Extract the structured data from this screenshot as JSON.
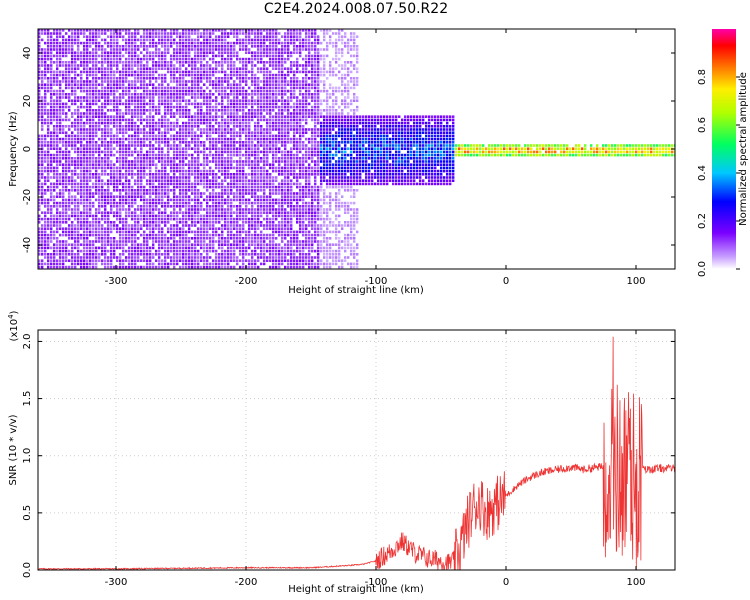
{
  "title": "C2E4.2024.008.07.50.R22",
  "chart_data": [
    {
      "type": "heatmap",
      "xlabel": "Height of straight line (km)",
      "ylabel": "Frequency (Hz)",
      "xlim": [
        -360,
        130
      ],
      "ylim": [
        -50,
        50
      ],
      "xticks": [
        -300,
        -200,
        -100,
        0,
        100
      ],
      "yticks": [
        -40,
        -20,
        0,
        20,
        40
      ],
      "colorbar": {
        "label": "Normalized spectral amplitude",
        "range": [
          0,
          1
        ],
        "ticks": [
          0.0,
          0.2,
          0.4,
          0.6,
          0.8
        ],
        "tick_labels": [
          "0.0",
          "0.2",
          "0.4",
          "0.6",
          "0.8"
        ],
        "colormap": "rainbow (white-purple-blue-cyan-green-yellow-red-magenta)"
      },
      "features": [
        {
          "x_range": [
            -360,
            -145
          ],
          "freq_range": [
            -50,
            50
          ],
          "amplitude": [
            0.02,
            0.15
          ],
          "description_value": "broadband noise"
        },
        {
          "x_range": [
            -145,
            -115
          ],
          "freq_range": [
            -50,
            50
          ],
          "amplitude": [
            0.0,
            0.08
          ]
        },
        {
          "x_range": [
            -145,
            -40
          ],
          "freq_range": [
            -15,
            15
          ],
          "amplitude": [
            0.1,
            0.4
          ]
        },
        {
          "x_range": [
            -40,
            130
          ],
          "freq_range": [
            -3,
            3
          ],
          "amplitude": [
            0.4,
            0.95
          ]
        }
      ]
    },
    {
      "type": "line",
      "xlabel": "Height of straight line (km)",
      "ylabel": "SNR (10 * v/v)",
      "y_multiplier_label": "(x10",
      "y_multiplier_exp": "4",
      "xlim": [
        -360,
        130
      ],
      "ylim": [
        0,
        2.1
      ],
      "xticks": [
        -300,
        -200,
        -100,
        0,
        100
      ],
      "yticks": [
        0.0,
        0.5,
        1.0,
        1.5,
        2.0
      ],
      "ytick_labels": [
        "0.0",
        "0.5",
        "1.0",
        "1.5",
        "2.0"
      ],
      "series": [
        {
          "color": "#ee3333",
          "x": [
            -360,
            -300,
            -200,
            -150,
            -120,
            -110,
            -100,
            -90,
            -80,
            -75,
            -70,
            -60,
            -50,
            -45,
            -40,
            -35,
            -30,
            -25,
            -20,
            -15,
            -10,
            -5,
            0,
            10,
            20,
            30,
            40,
            50,
            60,
            70,
            75,
            80,
            85,
            90,
            95,
            100,
            105,
            110,
            120,
            130
          ],
          "y": [
            0.01,
            0.01,
            0.02,
            0.02,
            0.04,
            0.05,
            0.08,
            0.15,
            0.25,
            0.2,
            0.15,
            0.1,
            0.08,
            0.06,
            0.08,
            0.2,
            0.4,
            0.55,
            0.6,
            0.5,
            0.55,
            0.6,
            0.65,
            0.75,
            0.82,
            0.86,
            0.88,
            0.9,
            0.88,
            0.9,
            0.9,
            0.85,
            0.9,
            0.8,
            0.9,
            0.75,
            0.88,
            0.88,
            0.89,
            0.89
          ],
          "spikes": {
            "x_range": [
              75,
              105
            ],
            "max": 2.1
          }
        }
      ]
    }
  ]
}
